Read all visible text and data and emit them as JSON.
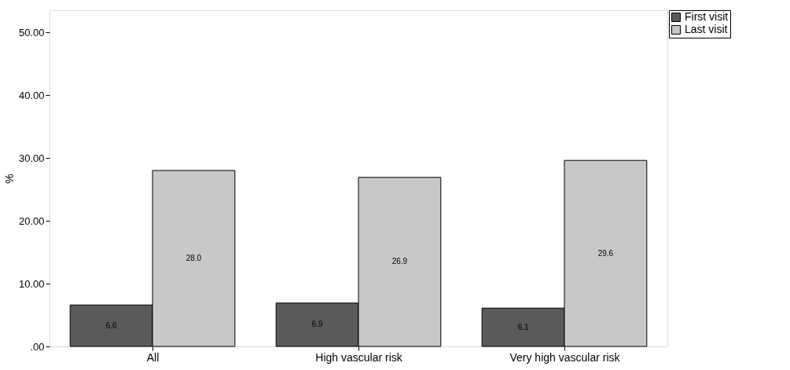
{
  "chart_data": {
    "type": "bar",
    "ylabel": "%",
    "categories": [
      "All",
      "High vascular risk",
      "Very high vascular risk"
    ],
    "ylim": [
      0,
      53.5
    ],
    "yticks": [
      {
        "value": 0,
        "label": ".00"
      },
      {
        "value": 10,
        "label": "10.00"
      },
      {
        "value": 20,
        "label": "20.00"
      },
      {
        "value": 30,
        "label": "30.00"
      },
      {
        "value": 40,
        "label": "40.00"
      },
      {
        "value": 50,
        "label": "50.00"
      }
    ],
    "grid": false,
    "legend": "top right",
    "series": [
      {
        "name": "First visit",
        "color": "#5a5a5a",
        "values": [
          6.6,
          6.9,
          6.1
        ],
        "value_labels": [
          "6.6",
          "6.9",
          "6.1"
        ]
      },
      {
        "name": "Last visit",
        "color": "#c8c8c8",
        "values": [
          28.0,
          26.9,
          29.6
        ],
        "value_labels": [
          "28.0",
          "26.9",
          "29.6"
        ]
      }
    ]
  }
}
